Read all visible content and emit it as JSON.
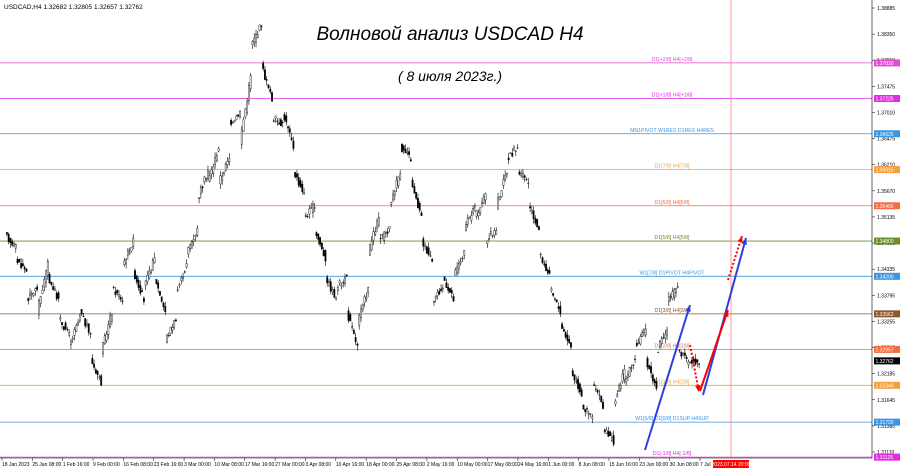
{
  "header": {
    "symbol_info": "USDCAD,H4  1.32682 1.32805 1.32657 1.32762",
    "title": "Волновой анализ USDCAD H4",
    "subtitle": "( 8 июля 2023г.)"
  },
  "colors": {
    "candle": "#000000",
    "wave_arrow": "#2b3fe0",
    "forecast_arrow": "#ff0000",
    "time_marker": "#ff8080",
    "current_price_bg": "#000000",
    "timestamp_bg": "#ff0000"
  },
  "chart_data": {
    "type": "candlestick",
    "price_range": [
      1.3111,
      1.389
    ],
    "y_ticks": [
      "1.38885",
      "1.38350",
      "1.37810",
      "1.37475",
      "1.37010",
      "1.36475",
      "1.36210",
      "1.35670",
      "1.35135",
      "1.34600",
      "1.34335",
      "1.33795",
      "1.33255",
      "1.32715",
      "1.32185",
      "1.31645",
      "1.31380",
      "1.31110"
    ],
    "x_ticks": [
      "18 Jan 2023",
      "25 Jan 08:00",
      "1 Feb 16:00",
      "9 Feb 00:00",
      "16 Feb 08:00",
      "23 Feb 16:00",
      "3 Mar 00:00",
      "10 Mar 08:00",
      "17 Mar 16:00",
      "27 Mar 00:00",
      "3 Apr 08:00",
      "10 Apr 16:00",
      "18 Apr 00:00",
      "25 Apr 08:00",
      "2 May 16:00",
      "10 May 00:00",
      "17 May 08:00",
      "24 May 16:00",
      "1 Jun 00:00",
      "8 Jun 08:00",
      "15 Jun 16:00",
      "23 Jun 00:00",
      "30 Jun 08:00",
      "7 Jul 16:00"
    ],
    "current_price": "1.32762",
    "current_time_label": "2023.07.14 20:00",
    "levels": [
      {
        "name": "D1[+2/8] H4[+2/8]",
        "price": 1.3783,
        "label": "1.37830",
        "color": "#e24ad0"
      },
      {
        "name": "D1[+1/8] H4[+1/8]",
        "price": 1.37225,
        "label": "1.37225",
        "color": "#e02ce2"
      },
      {
        "name": "MN1PIVOT W1RES D1RES H4RES",
        "price": 1.36625,
        "label": "1.36625",
        "color": "#3b95e0"
      },
      {
        "name": "D1[7/8] H4[7/8]",
        "price": 1.36015,
        "label": "1.36015",
        "color": "#f2a040"
      },
      {
        "name": "D1[6/8] H4[6/8]",
        "price": 1.354,
        "label": "1.35400",
        "color": "#f36b40"
      },
      {
        "name": "D1[5/8] H4[5/8]",
        "price": 1.348,
        "label": "1.34800",
        "color": "#6a8f2a"
      },
      {
        "name": "W1[7/8] D1PIVOT H4PIVOT",
        "price": 1.342,
        "label": "1.34200",
        "color": "#3b95e0"
      },
      {
        "name": "D1[3/8] H4[3/8]",
        "price": 1.33562,
        "label": "1.33562",
        "color": "#8a5a2a"
      },
      {
        "name": "D1[2/8] H4[2/8]",
        "price": 1.32957,
        "label": "1.32957",
        "color": "#f36b40"
      },
      {
        "name": "D1[1/8] H4[1/8]",
        "price": 1.32346,
        "label": "1.32346",
        "color": "#f2a040"
      },
      {
        "name": "W1[6/8] D1[0/8] D1SUP H4SUP",
        "price": 1.3172,
        "label": "1.31720",
        "color": "#3b95e0"
      },
      {
        "name": "D1[-1/8] H4[-1/8]",
        "price": 1.31125,
        "label": "1.31125",
        "color": "#e02ce2"
      }
    ],
    "price_path": [
      [
        1.349,
        1.347
      ],
      [
        1.345,
        1.343
      ],
      [
        1.338,
        1.34
      ],
      [
        1.336,
        1.344
      ],
      [
        1.342,
        1.338
      ],
      [
        1.335,
        1.332
      ],
      [
        1.33,
        1.335
      ],
      [
        1.336,
        1.332
      ],
      [
        1.328,
        1.324
      ],
      [
        1.329,
        1.336
      ],
      [
        1.34,
        1.338
      ],
      [
        1.344,
        1.348
      ],
      [
        1.343,
        1.338
      ],
      [
        1.34,
        1.345
      ],
      [
        1.342,
        1.336
      ],
      [
        1.331,
        1.335
      ],
      [
        1.339,
        1.344
      ],
      [
        1.346,
        1.35
      ],
      [
        1.355,
        1.36
      ],
      [
        1.358,
        1.364
      ],
      [
        1.358,
        1.362
      ],
      [
        1.368,
        1.37
      ],
      [
        1.365,
        1.376
      ],
      [
        1.381,
        1.385
      ],
      [
        1.378,
        1.372
      ],
      [
        1.369,
        1.368
      ],
      [
        1.37,
        1.364
      ],
      [
        1.36,
        1.356
      ],
      [
        1.352,
        1.354
      ],
      [
        1.35,
        1.345
      ],
      [
        1.342,
        1.338
      ],
      [
        1.34,
        1.342
      ],
      [
        1.336,
        1.33
      ],
      [
        1.334,
        1.34
      ],
      [
        1.346,
        1.352
      ],
      [
        1.348,
        1.35
      ],
      [
        1.354,
        1.36
      ],
      [
        1.364,
        1.362
      ],
      [
        1.358,
        1.352
      ],
      [
        1.348,
        1.345
      ],
      [
        1.338,
        1.34
      ],
      [
        1.342,
        1.338
      ],
      [
        1.342,
        1.346
      ],
      [
        1.35,
        1.354
      ],
      [
        1.352,
        1.356
      ],
      [
        1.348,
        1.35
      ],
      [
        1.354,
        1.36
      ],
      [
        1.362,
        1.364
      ],
      [
        1.36,
        1.358
      ],
      [
        1.354,
        1.35
      ],
      [
        1.346,
        1.342
      ],
      [
        1.34,
        1.336
      ],
      [
        1.334,
        1.33
      ],
      [
        1.326,
        1.322
      ],
      [
        1.32,
        1.318
      ],
      [
        1.324,
        1.32
      ],
      [
        1.316,
        1.314
      ],
      [
        1.32,
        1.326
      ],
      [
        1.324,
        1.328
      ],
      [
        1.33,
        1.333
      ],
      [
        1.328,
        1.323
      ],
      [
        1.329,
        1.333
      ],
      [
        1.338,
        1.34
      ],
      [
        1.33,
        1.327
      ],
      [
        1.3276,
        1.3276
      ]
    ]
  }
}
